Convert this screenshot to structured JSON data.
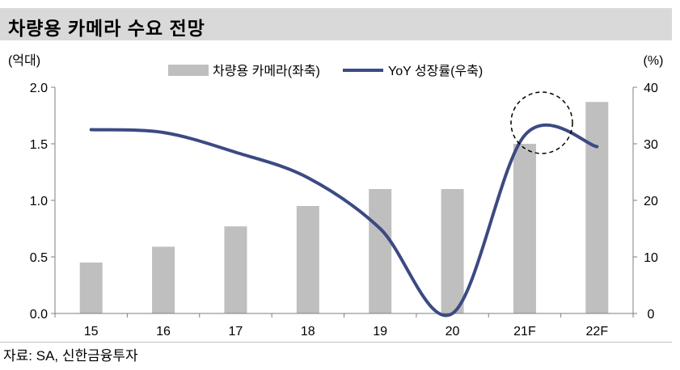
{
  "header": {
    "title": "차량용 카메라 수요 전망"
  },
  "source": "자료: SA, 신한금융투자",
  "chart_data": {
    "type": "bar+line",
    "categories": [
      "15",
      "16",
      "17",
      "18",
      "19",
      "20",
      "21F",
      "22F"
    ],
    "series": [
      {
        "name": "차량용 카메라(좌축)",
        "type": "bar",
        "axis": "left",
        "values": [
          0.45,
          0.59,
          0.77,
          0.95,
          1.1,
          1.1,
          1.5,
          1.87
        ],
        "color": "#bfbfbf"
      },
      {
        "name": "YoY 성장률(우축)",
        "type": "line",
        "axis": "right",
        "values": [
          32.5,
          32.0,
          28.5,
          24.0,
          15.0,
          0.0,
          31.5,
          29.5
        ],
        "color": "#3b4a82"
      }
    ],
    "y_left": {
      "unit": "(억대)",
      "ylim": [
        0,
        2.0
      ],
      "ticks": [
        "0.0",
        "0.5",
        "1.0",
        "1.5",
        "2.0"
      ]
    },
    "y_right": {
      "unit": "(%)",
      "ylim": [
        0,
        40
      ],
      "ticks": [
        "0",
        "10",
        "20",
        "30",
        "40"
      ]
    },
    "legend_position": "top-center",
    "annotation": "dashed circle around 21F peak",
    "grid": false
  }
}
